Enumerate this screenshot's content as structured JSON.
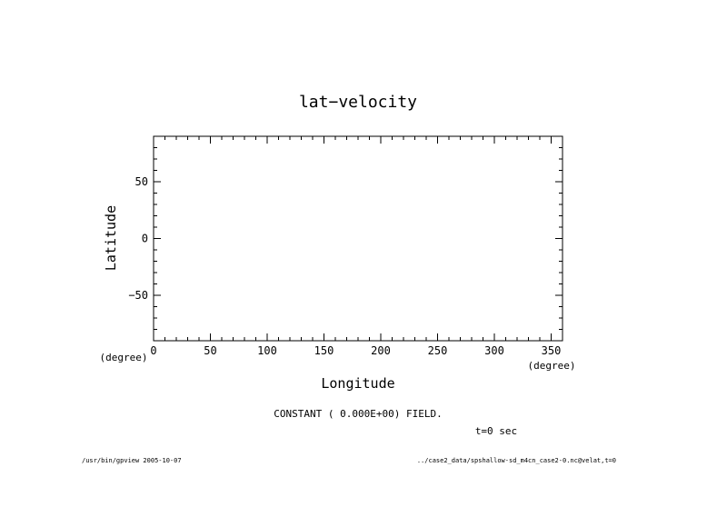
{
  "chart_data": {
    "type": "scatter",
    "title": "lat−velocity",
    "xlabel": "Longitude",
    "ylabel": "Latitude",
    "xunit": "(degree)",
    "yunit": "(degree)",
    "xlim": [
      0,
      360
    ],
    "ylim": [
      -90,
      90
    ],
    "xticks": [
      0,
      50,
      100,
      150,
      200,
      250,
      300,
      350
    ],
    "yticks": [
      -50,
      0,
      50
    ],
    "x_minor_step": 10,
    "y_minor_step": 10,
    "grid": false,
    "series": [],
    "annotations": {
      "field_note": "CONSTANT ( 0.000E+00) FIELD.",
      "time": "t=0 sec"
    }
  },
  "footer": {
    "left": "/usr/bin/gpview  2005-10-07",
    "right": "../case2_data/spshallow-sd_m4cn_case2-0.nc@velat,t=0"
  },
  "colors": {
    "axis": "#000000",
    "background": "#ffffff"
  }
}
